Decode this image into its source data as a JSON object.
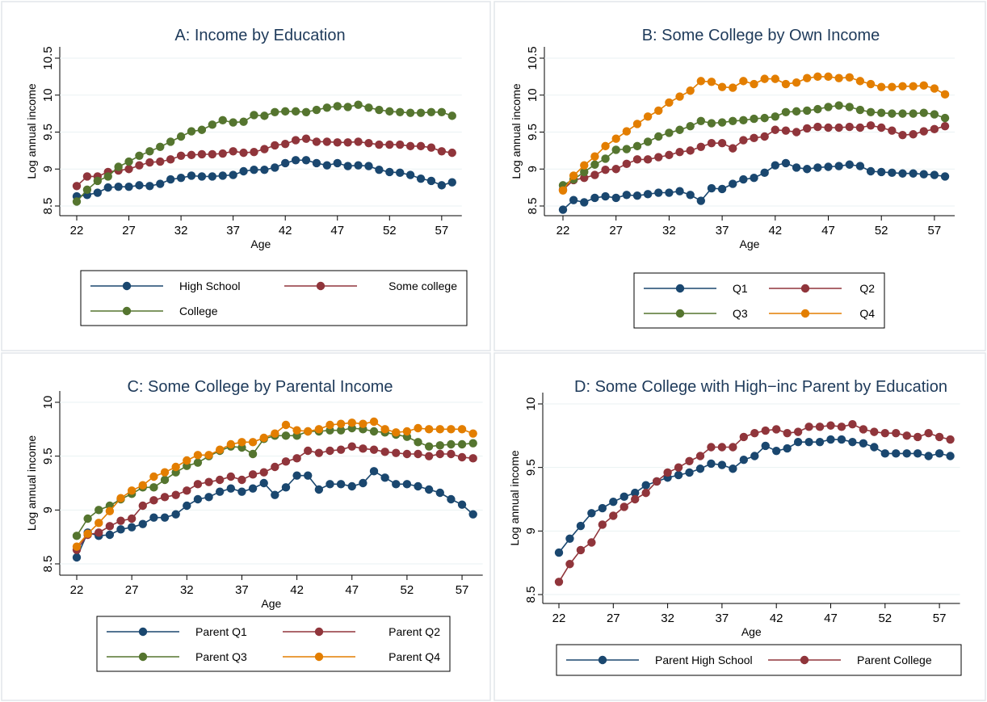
{
  "chart_data": [
    {
      "type": "line",
      "title": "A: Income by Education",
      "xlabel": "Age",
      "ylabel": "Log annual income",
      "x": [
        22,
        23,
        24,
        25,
        26,
        27,
        28,
        29,
        30,
        31,
        32,
        33,
        34,
        35,
        36,
        37,
        38,
        39,
        40,
        41,
        42,
        43,
        44,
        45,
        46,
        47,
        48,
        49,
        50,
        51,
        52,
        53,
        54,
        55,
        56,
        57,
        58
      ],
      "xlim": [
        22,
        58
      ],
      "xticks": [
        22,
        27,
        32,
        37,
        42,
        47,
        52,
        57
      ],
      "ylim": [
        8.5,
        10.5
      ],
      "yticks": [
        8.5,
        9,
        9.5,
        10,
        10.5
      ],
      "grid": true,
      "series": [
        {
          "name": "High School",
          "color": "#1a476f",
          "values": [
            8.63,
            8.65,
            8.68,
            8.75,
            8.76,
            8.76,
            8.78,
            8.77,
            8.8,
            8.86,
            8.88,
            8.91,
            8.9,
            8.9,
            8.91,
            8.92,
            8.97,
            8.99,
            8.99,
            9.02,
            9.08,
            9.12,
            9.12,
            9.08,
            9.05,
            9.08,
            9.04,
            9.05,
            9.04,
            8.99,
            8.96,
            8.95,
            8.92,
            8.87,
            8.84,
            8.78,
            8.82
          ]
        },
        {
          "name": "Some college",
          "color": "#90353b",
          "values": [
            8.77,
            8.9,
            8.9,
            8.96,
            8.98,
            9.0,
            9.05,
            9.09,
            9.1,
            9.13,
            9.18,
            9.19,
            9.2,
            9.2,
            9.21,
            9.24,
            9.22,
            9.23,
            9.27,
            9.32,
            9.34,
            9.39,
            9.41,
            9.37,
            9.37,
            9.36,
            9.36,
            9.37,
            9.35,
            9.33,
            9.33,
            9.33,
            9.31,
            9.31,
            9.29,
            9.24,
            9.22
          ]
        },
        {
          "name": "College",
          "color": "#55752f",
          "values": [
            8.56,
            8.72,
            8.84,
            8.9,
            9.03,
            9.1,
            9.18,
            9.24,
            9.3,
            9.37,
            9.44,
            9.51,
            9.53,
            9.6,
            9.66,
            9.63,
            9.64,
            9.73,
            9.72,
            9.77,
            9.78,
            9.78,
            9.77,
            9.8,
            9.83,
            9.85,
            9.84,
            9.87,
            9.83,
            9.8,
            9.78,
            9.77,
            9.76,
            9.76,
            9.77,
            9.77,
            9.72
          ]
        }
      ]
    },
    {
      "type": "line",
      "title": "B: Some College by Own Income",
      "xlabel": "Age",
      "ylabel": "Log annual income",
      "x": [
        22,
        23,
        24,
        25,
        26,
        27,
        28,
        29,
        30,
        31,
        32,
        33,
        34,
        35,
        36,
        37,
        38,
        39,
        40,
        41,
        42,
        43,
        44,
        45,
        46,
        47,
        48,
        49,
        50,
        51,
        52,
        53,
        54,
        55,
        56,
        57,
        58
      ],
      "xlim": [
        22,
        58
      ],
      "xticks": [
        22,
        27,
        32,
        37,
        42,
        47,
        52,
        57
      ],
      "ylim": [
        8.5,
        10.5
      ],
      "yticks": [
        8.5,
        9,
        9.5,
        10,
        10.5
      ],
      "grid": true,
      "series": [
        {
          "name": "Q1",
          "color": "#1a476f",
          "values": [
            8.45,
            8.58,
            8.55,
            8.61,
            8.63,
            8.61,
            8.65,
            8.64,
            8.66,
            8.68,
            8.68,
            8.7,
            8.65,
            8.57,
            8.74,
            8.73,
            8.8,
            8.86,
            8.88,
            8.95,
            9.05,
            9.08,
            9.02,
            9.0,
            9.02,
            9.03,
            9.04,
            9.06,
            9.04,
            8.97,
            8.96,
            8.95,
            8.94,
            8.94,
            8.93,
            8.92,
            8.9
          ]
        },
        {
          "name": "Q2",
          "color": "#90353b",
          "values": [
            8.72,
            8.85,
            8.88,
            8.92,
            8.99,
            9.0,
            9.07,
            9.13,
            9.13,
            9.16,
            9.19,
            9.23,
            9.25,
            9.3,
            9.35,
            9.35,
            9.28,
            9.39,
            9.42,
            9.44,
            9.53,
            9.52,
            9.5,
            9.55,
            9.57,
            9.56,
            9.56,
            9.57,
            9.56,
            9.59,
            9.56,
            9.52,
            9.46,
            9.47,
            9.51,
            9.54,
            9.58
          ]
        },
        {
          "name": "Q3",
          "color": "#55752f",
          "values": [
            8.78,
            8.86,
            8.96,
            9.06,
            9.14,
            9.26,
            9.27,
            9.31,
            9.37,
            9.44,
            9.49,
            9.53,
            9.58,
            9.65,
            9.62,
            9.63,
            9.65,
            9.66,
            9.68,
            9.69,
            9.71,
            9.77,
            9.78,
            9.79,
            9.81,
            9.84,
            9.86,
            9.84,
            9.8,
            9.77,
            9.76,
            9.75,
            9.75,
            9.75,
            9.76,
            9.74,
            9.69
          ]
        },
        {
          "name": "Q4",
          "color": "#e37e00",
          "values": [
            8.71,
            8.91,
            9.05,
            9.17,
            9.31,
            9.41,
            9.51,
            9.61,
            9.71,
            9.79,
            9.9,
            9.98,
            10.06,
            10.19,
            10.18,
            10.11,
            10.1,
            10.19,
            10.15,
            10.22,
            10.22,
            10.15,
            10.17,
            10.23,
            10.25,
            10.25,
            10.23,
            10.24,
            10.19,
            10.15,
            10.11,
            10.11,
            10.12,
            10.12,
            10.13,
            10.09,
            10.01
          ]
        }
      ]
    },
    {
      "type": "line",
      "title": "C: Some College by Parental Income",
      "xlabel": "Age",
      "ylabel": "Log annual income",
      "x": [
        22,
        23,
        24,
        25,
        26,
        27,
        28,
        29,
        30,
        31,
        32,
        33,
        34,
        35,
        36,
        37,
        38,
        39,
        40,
        41,
        42,
        43,
        44,
        45,
        46,
        47,
        48,
        49,
        50,
        51,
        52,
        53,
        54,
        55,
        56,
        57,
        58
      ],
      "xlim": [
        22,
        58
      ],
      "xticks": [
        22,
        27,
        32,
        37,
        42,
        47,
        52,
        57
      ],
      "ylim": [
        8.5,
        10
      ],
      "yticks": [
        8.5,
        9,
        9.5,
        10
      ],
      "grid": true,
      "series": [
        {
          "name": "Parent Q1",
          "color": "#1a476f",
          "values": [
            8.56,
            8.79,
            8.76,
            8.77,
            8.82,
            8.84,
            8.87,
            8.93,
            8.93,
            8.96,
            9.04,
            9.1,
            9.12,
            9.17,
            9.2,
            9.17,
            9.2,
            9.25,
            9.14,
            9.21,
            9.32,
            9.32,
            9.19,
            9.24,
            9.24,
            9.22,
            9.25,
            9.36,
            9.3,
            9.24,
            9.24,
            9.22,
            9.19,
            9.16,
            9.1,
            9.05,
            8.96
          ]
        },
        {
          "name": "Parent Q2",
          "color": "#90353b",
          "values": [
            8.63,
            8.77,
            8.79,
            8.85,
            8.9,
            8.92,
            9.04,
            9.09,
            9.12,
            9.14,
            9.18,
            9.24,
            9.26,
            9.28,
            9.31,
            9.28,
            9.33,
            9.35,
            9.4,
            9.45,
            9.48,
            9.55,
            9.53,
            9.55,
            9.56,
            9.59,
            9.57,
            9.56,
            9.54,
            9.53,
            9.52,
            9.52,
            9.5,
            9.52,
            9.52,
            9.49,
            9.48
          ]
        },
        {
          "name": "Parent Q3",
          "color": "#55752f",
          "values": [
            8.76,
            8.92,
            9.0,
            9.04,
            9.1,
            9.15,
            9.21,
            9.21,
            9.28,
            9.35,
            9.41,
            9.44,
            9.5,
            9.55,
            9.59,
            9.58,
            9.52,
            9.66,
            9.69,
            9.69,
            9.69,
            9.73,
            9.73,
            9.74,
            9.74,
            9.76,
            9.75,
            9.73,
            9.72,
            9.7,
            9.68,
            9.63,
            9.59,
            9.6,
            9.61,
            9.61,
            9.62
          ]
        },
        {
          "name": "Parent Q4",
          "color": "#e37e00",
          "values": [
            8.66,
            8.78,
            8.88,
            8.99,
            9.11,
            9.18,
            9.23,
            9.31,
            9.35,
            9.4,
            9.46,
            9.51,
            9.51,
            9.56,
            9.61,
            9.63,
            9.63,
            9.67,
            9.71,
            9.79,
            9.74,
            9.73,
            9.75,
            9.79,
            9.8,
            9.81,
            9.8,
            9.82,
            9.75,
            9.72,
            9.73,
            9.76,
            9.75,
            9.75,
            9.75,
            9.75,
            9.71
          ]
        }
      ]
    },
    {
      "type": "line",
      "title": "D: Some College with High−inc Parent by Education",
      "xlabel": "Age",
      "ylabel": "Log annual income",
      "x": [
        22,
        23,
        24,
        25,
        26,
        27,
        28,
        29,
        30,
        31,
        32,
        33,
        34,
        35,
        36,
        37,
        38,
        39,
        40,
        41,
        42,
        43,
        44,
        45,
        46,
        47,
        48,
        49,
        50,
        51,
        52,
        53,
        54,
        55,
        56,
        57,
        58
      ],
      "xlim": [
        22,
        58
      ],
      "xticks": [
        22,
        27,
        32,
        37,
        42,
        47,
        52,
        57
      ],
      "ylim": [
        8.5,
        10
      ],
      "yticks": [
        8.5,
        9,
        9.5,
        10
      ],
      "grid": true,
      "series": [
        {
          "name": "Parent High School",
          "color": "#1a476f",
          "values": [
            8.83,
            8.94,
            9.04,
            9.14,
            9.18,
            9.23,
            9.27,
            9.3,
            9.36,
            9.39,
            9.42,
            9.44,
            9.46,
            9.49,
            9.53,
            9.52,
            9.49,
            9.56,
            9.59,
            9.67,
            9.63,
            9.65,
            9.7,
            9.7,
            9.7,
            9.72,
            9.72,
            9.7,
            9.69,
            9.66,
            9.61,
            9.61,
            9.61,
            9.61,
            9.59,
            9.61,
            9.59
          ]
        },
        {
          "name": "Parent College",
          "color": "#90353b",
          "values": [
            8.6,
            8.74,
            8.85,
            8.91,
            9.05,
            9.12,
            9.19,
            9.25,
            9.3,
            9.39,
            9.46,
            9.5,
            9.55,
            9.59,
            9.66,
            9.66,
            9.66,
            9.74,
            9.77,
            9.79,
            9.8,
            9.77,
            9.78,
            9.82,
            9.82,
            9.83,
            9.82,
            9.84,
            9.8,
            9.78,
            9.77,
            9.77,
            9.75,
            9.74,
            9.77,
            9.74,
            9.72
          ]
        }
      ]
    }
  ]
}
